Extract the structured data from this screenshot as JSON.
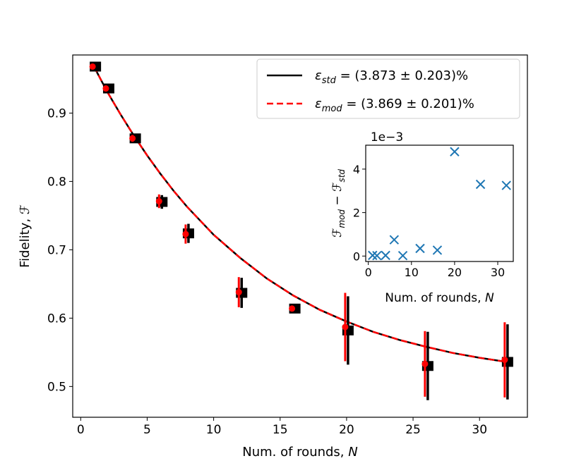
{
  "chart_data": [
    {
      "type": "scatter",
      "role": "main",
      "xlabel": "Num. of rounds, ",
      "xlabel_var": "N",
      "ylabel": "Fidelity, ",
      "ylabel_var": "ℱ",
      "xlim": [
        -0.6,
        33.6
      ],
      "ylim": [
        0.455,
        0.985
      ],
      "xticks": [
        0,
        5,
        10,
        15,
        20,
        25,
        30
      ],
      "yticks": [
        0.5,
        0.6,
        0.7,
        0.8,
        0.9
      ],
      "ytick_labels": [
        "0.5",
        "0.6",
        "0.7",
        "0.8",
        "0.9"
      ],
      "legend_position": "top-right",
      "series": [
        {
          "name": "std",
          "legend_prefix": "ε",
          "legend_sub": "std",
          "legend_value": " = (3.873 ± 0.203)%",
          "color": "#000000",
          "line_style": "solid",
          "marker": "square",
          "x": [
            1,
            2,
            4,
            6,
            8,
            12,
            16,
            20,
            26,
            32
          ],
          "y": [
            0.968,
            0.936,
            0.863,
            0.77,
            0.724,
            0.637,
            0.614,
            0.582,
            0.53,
            0.536
          ],
          "err": [
            0.004,
            0.004,
            0.005,
            0.01,
            0.014,
            0.022,
            0.004,
            0.05,
            0.05,
            0.055
          ]
        },
        {
          "name": "mod",
          "legend_prefix": "ε",
          "legend_sub": "mod",
          "legend_value": " = (3.869 ± 0.201)%",
          "color": "#ff0000",
          "line_style": "dashed",
          "marker": "circle",
          "x": [
            1,
            2,
            4,
            6,
            8,
            12,
            16,
            20,
            26,
            32
          ],
          "y": [
            0.968,
            0.936,
            0.863,
            0.771,
            0.723,
            0.638,
            0.614,
            0.587,
            0.533,
            0.539
          ],
          "err": [
            0.004,
            0.004,
            0.005,
            0.01,
            0.014,
            0.022,
            0.004,
            0.05,
            0.048,
            0.055
          ]
        }
      ],
      "fit_curve": {
        "x": [
          1,
          2,
          3,
          4,
          5,
          6,
          7,
          8,
          10,
          12,
          14,
          16,
          18,
          20,
          22,
          24,
          26,
          28,
          30,
          32
        ],
        "y": [
          0.968,
          0.931,
          0.898,
          0.867,
          0.838,
          0.811,
          0.786,
          0.763,
          0.722,
          0.688,
          0.658,
          0.633,
          0.612,
          0.595,
          0.58,
          0.568,
          0.558,
          0.549,
          0.542,
          0.536
        ]
      }
    },
    {
      "type": "scatter",
      "role": "inset",
      "xlabel": "Num. of rounds, ",
      "xlabel_var": "N",
      "ylabel_main": "ℱ",
      "ylabel_sub1": "mod",
      "ylabel_minus": " − ",
      "ylabel_sub2": "std",
      "offset_label": "1e−3",
      "xlim": [
        -0.6,
        33.6
      ],
      "ylim": [
        -0.25,
        5.1
      ],
      "xticks": [
        0,
        10,
        20,
        30
      ],
      "yticks": [
        0,
        2,
        4
      ],
      "marker": "x",
      "color": "#1f77b4",
      "x": [
        1,
        2,
        4,
        6,
        8,
        12,
        16,
        20,
        26,
        32
      ],
      "y": [
        0.03,
        0.02,
        0.03,
        0.75,
        0.02,
        0.35,
        0.27,
        4.8,
        3.3,
        3.25
      ]
    }
  ]
}
